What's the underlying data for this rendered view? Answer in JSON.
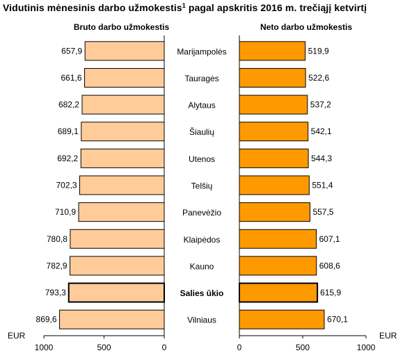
{
  "title": {
    "main": "Vidutinis mėnesinis  darbo užmokestis",
    "footnote": "1",
    "rest": " pagal apskritis 2016 m. trečiąjį ketvirtį"
  },
  "colors": {
    "gross_fill": "#FFCC99",
    "net_fill": "#FF9900",
    "stroke": "#000000"
  },
  "chart_data": {
    "type": "bar",
    "orientation": "horizontal",
    "layout": "back-to-back",
    "categories": [
      "Marijampolės",
      "Tauragės",
      "Alytaus",
      "Šiaulių",
      "Utenos",
      "Telšių",
      "Panevėžio",
      "Klaipėdos",
      "Kauno",
      "Salies ūkio",
      "Vilniaus"
    ],
    "highlight_category": "Salies ūkio",
    "series": [
      {
        "name": "Bruto darbo užmokestis",
        "side": "left",
        "values": [
          657.9,
          661.6,
          682.2,
          689.1,
          692.2,
          702.3,
          710.9,
          780.8,
          782.9,
          793.3,
          869.6
        ],
        "labels": [
          "657,9",
          "661,6",
          "682,2",
          "689,1",
          "692,2",
          "702,3",
          "710,9",
          "780,8",
          "782,9",
          "793,3",
          "869,6"
        ],
        "axis": {
          "min": 0,
          "max": 1000,
          "reversed": true,
          "ticks": [
            1000,
            500,
            0
          ],
          "unit": "EUR"
        }
      },
      {
        "name": "Neto darbo užmokestis",
        "side": "right",
        "values": [
          519.9,
          522.6,
          537.2,
          542.1,
          544.3,
          551.4,
          557.5,
          607.1,
          608.6,
          615.9,
          670.1
        ],
        "labels": [
          "519,9",
          "522,6",
          "537,2",
          "542,1",
          "544,3",
          "551,4",
          "557,5",
          "607,1",
          "608,6",
          "615,9",
          "670,1"
        ],
        "axis": {
          "min": 0,
          "max": 1000,
          "reversed": false,
          "ticks": [
            0,
            500,
            1000
          ],
          "unit": "EUR"
        }
      }
    ],
    "grid": false,
    "legend": "none"
  }
}
